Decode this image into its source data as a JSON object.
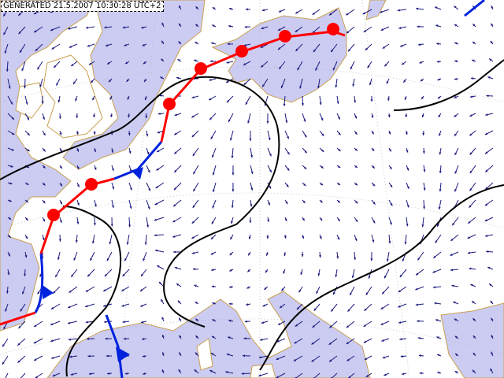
{
  "stamp": "GENERATED 21.5.2007 10:30:28 UTC+2"
}
